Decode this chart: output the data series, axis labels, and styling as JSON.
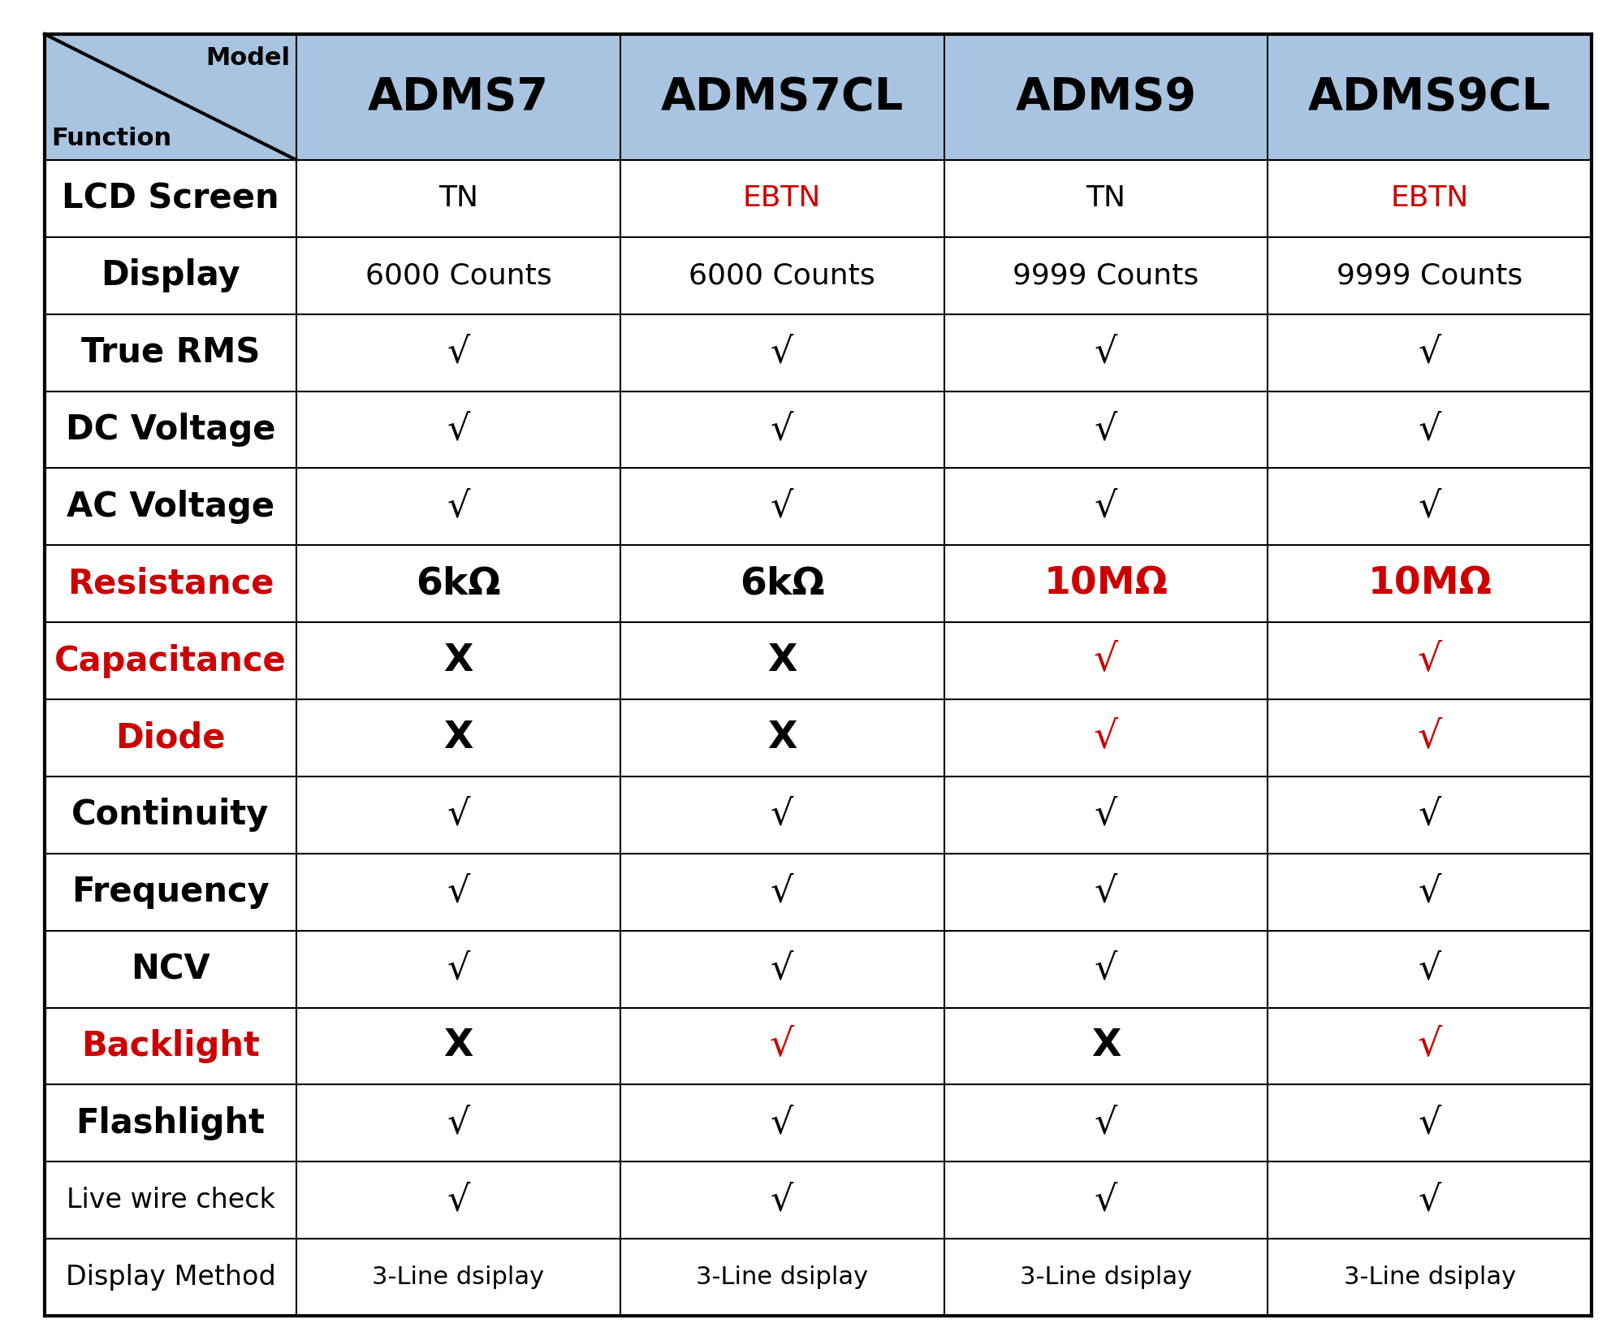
{
  "header_bg_color": "#a8c4e0",
  "header_text_color": "#000000",
  "col_headers": [
    "ADMS7",
    "ADMS7CL",
    "ADMS9",
    "ADMS9CL"
  ],
  "rows": [
    {
      "label": "LCD Screen",
      "label_color": "#000000",
      "label_bold": true,
      "label_fontsize": 30,
      "values": [
        "TN",
        "EBTN",
        "TN",
        "EBTN"
      ],
      "value_colors": [
        "#000000",
        "#cc0000",
        "#000000",
        "#cc0000"
      ],
      "value_bold": [
        false,
        false,
        false,
        false
      ],
      "value_fontsize": 26
    },
    {
      "label": "Display",
      "label_color": "#000000",
      "label_bold": true,
      "label_fontsize": 30,
      "values": [
        "6000 Counts",
        "6000 Counts",
        "9999 Counts",
        "9999 Counts"
      ],
      "value_colors": [
        "#000000",
        "#000000",
        "#000000",
        "#000000"
      ],
      "value_bold": [
        false,
        false,
        false,
        false
      ],
      "value_fontsize": 26
    },
    {
      "label": "True RMS",
      "label_color": "#000000",
      "label_bold": true,
      "label_fontsize": 30,
      "values": [
        "√",
        "√",
        "√",
        "√"
      ],
      "value_colors": [
        "#000000",
        "#000000",
        "#000000",
        "#000000"
      ],
      "value_bold": [
        false,
        false,
        false,
        false
      ],
      "value_fontsize": 32
    },
    {
      "label": "DC Voltage",
      "label_color": "#000000",
      "label_bold": true,
      "label_fontsize": 30,
      "values": [
        "√",
        "√",
        "√",
        "√"
      ],
      "value_colors": [
        "#000000",
        "#000000",
        "#000000",
        "#000000"
      ],
      "value_bold": [
        false,
        false,
        false,
        false
      ],
      "value_fontsize": 32
    },
    {
      "label": "AC Voltage",
      "label_color": "#000000",
      "label_bold": true,
      "label_fontsize": 30,
      "values": [
        "√",
        "√",
        "√",
        "√"
      ],
      "value_colors": [
        "#000000",
        "#000000",
        "#000000",
        "#000000"
      ],
      "value_bold": [
        false,
        false,
        false,
        false
      ],
      "value_fontsize": 32
    },
    {
      "label": "Resistance",
      "label_color": "#cc0000",
      "label_bold": true,
      "label_fontsize": 30,
      "values": [
        "6kΩ",
        "6kΩ",
        "10MΩ",
        "10MΩ"
      ],
      "value_colors": [
        "#000000",
        "#000000",
        "#cc0000",
        "#cc0000"
      ],
      "value_bold": [
        true,
        true,
        true,
        true
      ],
      "value_fontsize": 34
    },
    {
      "label": "Capacitance",
      "label_color": "#cc0000",
      "label_bold": true,
      "label_fontsize": 30,
      "values": [
        "X",
        "X",
        "√",
        "√"
      ],
      "value_colors": [
        "#000000",
        "#000000",
        "#cc0000",
        "#cc0000"
      ],
      "value_bold": [
        true,
        true,
        false,
        false
      ],
      "value_fontsize": 34
    },
    {
      "label": "Diode",
      "label_color": "#cc0000",
      "label_bold": true,
      "label_fontsize": 30,
      "values": [
        "X",
        "X",
        "√",
        "√"
      ],
      "value_colors": [
        "#000000",
        "#000000",
        "#cc0000",
        "#cc0000"
      ],
      "value_bold": [
        true,
        true,
        false,
        false
      ],
      "value_fontsize": 34
    },
    {
      "label": "Continuity",
      "label_color": "#000000",
      "label_bold": true,
      "label_fontsize": 30,
      "values": [
        "√",
        "√",
        "√",
        "√"
      ],
      "value_colors": [
        "#000000",
        "#000000",
        "#000000",
        "#000000"
      ],
      "value_bold": [
        false,
        false,
        false,
        false
      ],
      "value_fontsize": 32
    },
    {
      "label": "Frequency",
      "label_color": "#000000",
      "label_bold": true,
      "label_fontsize": 30,
      "values": [
        "√",
        "√",
        "√",
        "√"
      ],
      "value_colors": [
        "#000000",
        "#000000",
        "#000000",
        "#000000"
      ],
      "value_bold": [
        false,
        false,
        false,
        false
      ],
      "value_fontsize": 32
    },
    {
      "label": "NCV",
      "label_color": "#000000",
      "label_bold": true,
      "label_fontsize": 30,
      "values": [
        "√",
        "√",
        "√",
        "√"
      ],
      "value_colors": [
        "#000000",
        "#000000",
        "#000000",
        "#000000"
      ],
      "value_bold": [
        false,
        false,
        false,
        false
      ],
      "value_fontsize": 32
    },
    {
      "label": "Backlight",
      "label_color": "#cc0000",
      "label_bold": true,
      "label_fontsize": 30,
      "values": [
        "X",
        "√",
        "X",
        "√"
      ],
      "value_colors": [
        "#000000",
        "#cc0000",
        "#000000",
        "#cc0000"
      ],
      "value_bold": [
        true,
        false,
        true,
        false
      ],
      "value_fontsize": 34
    },
    {
      "label": "Flashlight",
      "label_color": "#000000",
      "label_bold": true,
      "label_fontsize": 30,
      "values": [
        "√",
        "√",
        "√",
        "√"
      ],
      "value_colors": [
        "#000000",
        "#000000",
        "#000000",
        "#000000"
      ],
      "value_bold": [
        false,
        false,
        false,
        false
      ],
      "value_fontsize": 32
    },
    {
      "label": "Live wire check",
      "label_color": "#000000",
      "label_bold": false,
      "label_fontsize": 24,
      "values": [
        "√",
        "√",
        "√",
        "√"
      ],
      "value_colors": [
        "#000000",
        "#000000",
        "#000000",
        "#000000"
      ],
      "value_bold": [
        false,
        false,
        false,
        false
      ],
      "value_fontsize": 32
    },
    {
      "label": "Display Method",
      "label_color": "#000000",
      "label_bold": false,
      "label_fontsize": 24,
      "values": [
        "3-Line dsiplay",
        "3-Line dsiplay",
        "3-Line dsiplay",
        "3-Line dsiplay"
      ],
      "value_colors": [
        "#000000",
        "#000000",
        "#000000",
        "#000000"
      ],
      "value_bold": [
        false,
        false,
        false,
        false
      ],
      "value_fontsize": 22
    }
  ],
  "header_fontsize": 40,
  "bg_color": "#ffffff",
  "grid_color": "#000000",
  "outer_lw": 3.0,
  "inner_lw": 1.5
}
